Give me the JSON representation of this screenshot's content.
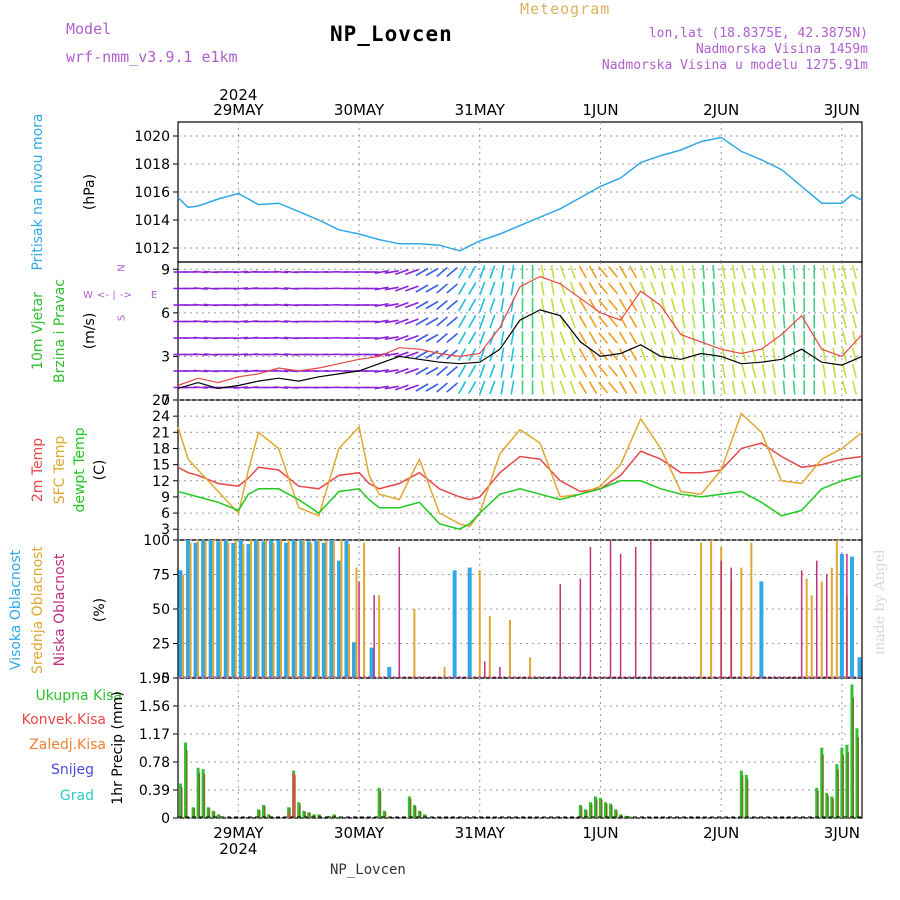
{
  "header": {
    "title": "NP_Lovcen",
    "model_label": "Model",
    "model_name": "wrf-nmm_v3.9.1 e1km",
    "product": "Meteogram",
    "lonlat": "lon,lat (18.8375E, 42.3875N)",
    "altitude": "Nadmorska Visina 1459m",
    "model_altitude": "Nadmorska Visina u modelu 1275.91m",
    "bottom_name": "NP_Lovcen",
    "made_by": "made by Angel"
  },
  "colors": {
    "pressure": "#30a8e8",
    "wind_label": "#30c030",
    "wind_compass": "#b060d0",
    "t2m": "#e84848",
    "tsfc": "#e0a830",
    "dewpt": "#20c820",
    "high_cloud": "#30a8e8",
    "mid_cloud": "#e0a830",
    "low_cloud": "#c03080",
    "total_precip": "#30c030",
    "conv_precip": "#e84848",
    "frozen_precip": "#f08030",
    "snow": "#4848e0",
    "hail": "#30c8c8",
    "olive": "#707020"
  },
  "chart_data": [
    {
      "type": "line",
      "panel": "pressure",
      "ylabel": "Pritisak na nivou mora",
      "unit": "(hPa)",
      "ylim": [
        1011,
        1021
      ],
      "yticks": [
        "1012",
        "1014",
        "1016",
        "1018",
        "1020"
      ],
      "xlim": [
        0,
        136
      ],
      "date_ticks": {
        "year": "2024",
        "labels": [
          "29MAY",
          "30MAY",
          "31MAY",
          "1JUN",
          "2JUN",
          "3JUN"
        ],
        "hours": [
          12,
          36,
          60,
          84,
          108,
          132
        ]
      },
      "x_hours": [
        0,
        2,
        4,
        8,
        12,
        16,
        20,
        24,
        28,
        32,
        36,
        40,
        44,
        48,
        52,
        56,
        60,
        64,
        68,
        72,
        76,
        80,
        84,
        88,
        92,
        96,
        100,
        104,
        108,
        112,
        116,
        120,
        124,
        128,
        132,
        134,
        136
      ],
      "values": [
        1015.6,
        1014.9,
        1015.0,
        1015.5,
        1015.9,
        1015.1,
        1015.2,
        1014.6,
        1014.0,
        1013.3,
        1013.0,
        1012.6,
        1012.3,
        1012.3,
        1012.2,
        1011.8,
        1012.5,
        1013.0,
        1013.6,
        1014.2,
        1014.8,
        1015.6,
        1016.4,
        1017.0,
        1018.1,
        1018.6,
        1019.0,
        1019.6,
        1019.9,
        1018.9,
        1018.3,
        1017.6,
        1016.4,
        1015.2,
        1015.2,
        1015.8,
        1015.4
      ],
      "series": [
        {
          "name": "Pritisak na nivou mora",
          "values": []
        }
      ]
    },
    {
      "type": "line",
      "panel": "wind",
      "ylabel": [
        "10m Vjetar",
        "Brzina i Pravac"
      ],
      "unit": "(m/s)",
      "compass": [
        "W",
        "<-",
        "|",
        "->",
        "E",
        "S",
        "N"
      ],
      "ylim": [
        0,
        9.5
      ],
      "yticks": [
        "0",
        "3",
        "6",
        "9"
      ],
      "x_hours": [
        0,
        4,
        8,
        12,
        16,
        20,
        24,
        28,
        32,
        36,
        40,
        44,
        48,
        52,
        56,
        60,
        64,
        68,
        72,
        76,
        80,
        84,
        88,
        92,
        96,
        100,
        104,
        108,
        112,
        116,
        120,
        124,
        128,
        132,
        136
      ],
      "speed": [
        0.8,
        1.2,
        0.8,
        1.0,
        1.3,
        1.5,
        1.3,
        1.6,
        1.8,
        2.0,
        2.5,
        3.0,
        2.8,
        2.6,
        2.5,
        2.6,
        3.5,
        5.5,
        6.2,
        5.8,
        4.0,
        3.0,
        3.2,
        3.8,
        3.0,
        2.8,
        3.2,
        3.0,
        2.5,
        2.6,
        2.8,
        3.5,
        2.6,
        2.4,
        3.0
      ],
      "gust": [
        1.0,
        1.5,
        1.2,
        1.6,
        1.8,
        2.2,
        2.0,
        2.2,
        2.5,
        2.8,
        3.0,
        3.6,
        3.5,
        3.2,
        3.0,
        3.2,
        5.0,
        7.8,
        8.5,
        8.0,
        7.0,
        6.0,
        5.5,
        7.5,
        6.5,
        4.5,
        4.0,
        3.5,
        3.2,
        3.5,
        4.5,
        5.8,
        3.5,
        3.0,
        4.5
      ],
      "direction_deg": [
        270,
        275,
        270,
        265,
        270,
        275,
        270,
        268,
        272,
        270,
        260,
        250,
        240,
        230,
        210,
        200,
        190,
        180,
        170,
        160,
        150,
        140,
        150,
        160,
        165,
        170,
        175,
        170,
        165,
        170,
        175,
        180,
        170,
        165,
        170
      ],
      "series": [
        {
          "name": "speed",
          "values": []
        },
        {
          "name": "gust",
          "values": []
        }
      ]
    },
    {
      "type": "line",
      "panel": "temperature",
      "ylabel": [
        "2m Temp",
        "SFC Temp",
        "dewpt Temp"
      ],
      "unit": "(C)",
      "ylim": [
        1,
        27
      ],
      "yticks": [
        "3",
        "6",
        "9",
        "12",
        "15",
        "18",
        "21",
        "24",
        "27"
      ],
      "x_hours": [
        0,
        2,
        4,
        8,
        12,
        14,
        16,
        20,
        24,
        28,
        32,
        36,
        38,
        40,
        44,
        48,
        52,
        56,
        58,
        60,
        64,
        68,
        72,
        76,
        80,
        84,
        88,
        92,
        96,
        100,
        104,
        108,
        112,
        116,
        120,
        124,
        128,
        132,
        136
      ],
      "series": [
        {
          "name": "2m Temp",
          "values": [
            14.5,
            13.5,
            13.0,
            11.5,
            11.0,
            12.5,
            14.5,
            14.0,
            11.0,
            10.5,
            13.0,
            13.5,
            11.5,
            10.5,
            11.5,
            13.5,
            10.5,
            9.0,
            8.5,
            9.0,
            13.5,
            16.5,
            16.0,
            12.0,
            10.0,
            10.5,
            13.0,
            17.5,
            16.0,
            13.5,
            13.5,
            14.0,
            18.0,
            19.0,
            16.5,
            14.5,
            15.0,
            16.0,
            16.5
          ]
        },
        {
          "name": "SFC Temp",
          "values": [
            22.0,
            16.0,
            14.0,
            10.0,
            6.0,
            14.0,
            21.0,
            18.0,
            7.0,
            5.5,
            18.0,
            22.0,
            13.0,
            9.5,
            8.5,
            16.0,
            6.0,
            4.0,
            3.5,
            6.0,
            17.0,
            21.5,
            19.0,
            9.0,
            9.5,
            11.0,
            15.0,
            23.5,
            18.0,
            10.0,
            9.5,
            14.0,
            24.5,
            21.0,
            12.0,
            11.5,
            16.0,
            18.0,
            21.0
          ]
        },
        {
          "name": "dewpt Temp",
          "values": [
            10.0,
            9.5,
            9.0,
            8.0,
            6.5,
            9.5,
            10.5,
            10.5,
            8.5,
            6.0,
            10.0,
            10.5,
            8.5,
            7.0,
            7.0,
            8.0,
            4.0,
            3.0,
            4.0,
            6.0,
            9.5,
            10.5,
            9.5,
            8.5,
            9.5,
            10.5,
            12.0,
            12.0,
            10.5,
            9.5,
            9.0,
            9.5,
            10.0,
            8.0,
            5.5,
            6.5,
            10.5,
            12.0,
            13.0
          ]
        }
      ]
    },
    {
      "type": "bar",
      "panel": "cloud",
      "ylabel": [
        "Visoka Oblacnost",
        "Srednja Oblacnost",
        "Niska Oblacnost"
      ],
      "unit": "(%)",
      "ylim": [
        0,
        100
      ],
      "yticks": [
        "0",
        "25",
        "50",
        "75",
        "100"
      ],
      "series": [
        {
          "name": "Visoka Oblacnost",
          "x_hours": [
            0.5,
            2,
            3.5,
            5,
            6.5,
            8,
            9.5,
            11,
            12.5,
            14,
            15.5,
            17,
            18.5,
            20,
            21.5,
            23,
            24.5,
            26,
            27.5,
            29,
            30.5,
            32,
            33.5,
            35,
            38.5,
            42,
            55,
            58,
            116,
            132,
            134,
            135.5
          ],
          "values": [
            78,
            100,
            98,
            100,
            100,
            99,
            100,
            98,
            100,
            97,
            100,
            99,
            100,
            100,
            98,
            100,
            100,
            99,
            100,
            98,
            100,
            85,
            100,
            26,
            22,
            8,
            78,
            80,
            70,
            90,
            88,
            15
          ]
        },
        {
          "name": "Srednja Oblacnost",
          "x_hours": [
            1,
            2.5,
            4,
            5.5,
            7,
            8.5,
            10,
            11.5,
            13,
            14.5,
            16,
            17.5,
            19,
            20.5,
            22,
            23.5,
            25,
            26.5,
            28,
            29.5,
            31,
            32.5,
            34,
            35.5,
            37,
            40,
            47,
            53,
            60,
            62,
            66,
            70,
            104,
            106,
            108,
            110,
            112,
            114,
            125,
            126,
            128,
            130,
            131,
            133
          ],
          "values": [
            75,
            98,
            100,
            99,
            100,
            100,
            98,
            100,
            97,
            100,
            99,
            100,
            98,
            100,
            100,
            99,
            100,
            98,
            100,
            100,
            99,
            100,
            97,
            80,
            98,
            60,
            50,
            8,
            78,
            45,
            42,
            15,
            98,
            100,
            95,
            70,
            80,
            98,
            72,
            60,
            70,
            80,
            100,
            60
          ]
        },
        {
          "name": "Niska Oblacnost",
          "x_hours": [
            36,
            39,
            44,
            61,
            64,
            76,
            80,
            82,
            86,
            88,
            91,
            94,
            108,
            110,
            124,
            127,
            129,
            133
          ],
          "values": [
            70,
            60,
            95,
            12,
            8,
            68,
            72,
            95,
            100,
            90,
            95,
            100,
            85,
            80,
            78,
            85,
            75,
            90
          ]
        }
      ]
    },
    {
      "type": "bar",
      "panel": "precip",
      "ylabel": "1hr Precip",
      "unit": "(mm)",
      "legend": [
        "Ukupna Kisa",
        "Konvek.Kisa",
        "Zaledj.Kisa",
        "Snijeg",
        "Grad"
      ],
      "ylim": [
        0,
        1.95
      ],
      "yticks": [
        "0",
        "0.39",
        "0.78",
        "1.17",
        "1.56",
        "1.95"
      ],
      "x_hours": [
        0.5,
        1.5,
        3,
        4,
        5,
        6,
        7,
        8,
        9,
        16,
        17,
        18,
        22,
        23,
        24,
        25,
        26,
        27,
        28,
        30,
        31,
        32,
        40,
        41,
        46,
        47,
        48,
        49,
        80,
        81,
        82,
        83,
        84,
        85,
        86,
        87,
        88,
        89,
        90,
        112,
        113,
        127,
        128,
        129,
        130,
        131,
        132,
        133,
        134,
        135
      ],
      "values": [
        0.48,
        1.05,
        0.15,
        0.7,
        0.68,
        0.15,
        0.1,
        0.05,
        0.02,
        0.12,
        0.18,
        0.05,
        0.15,
        0.66,
        0.22,
        0.1,
        0.08,
        0.05,
        0.05,
        0.03,
        0.05,
        0.02,
        0.42,
        0.1,
        0.3,
        0.18,
        0.1,
        0.05,
        0.18,
        0.12,
        0.22,
        0.3,
        0.28,
        0.22,
        0.2,
        0.12,
        0.05,
        0.03,
        0.02,
        0.66,
        0.6,
        0.42,
        0.98,
        0.35,
        0.3,
        0.75,
        0.98,
        1.02,
        1.86,
        1.25
      ],
      "conv_values": [
        0,
        0,
        0,
        0,
        0,
        0,
        0,
        0,
        0,
        0,
        0,
        0,
        0.05,
        0.62,
        0,
        0,
        0,
        0,
        0,
        0,
        0,
        0,
        0,
        0,
        0,
        0,
        0,
        0,
        0,
        0,
        0,
        0,
        0,
        0,
        0,
        0,
        0,
        0,
        0,
        0,
        0,
        0,
        0,
        0,
        0,
        0,
        0,
        0,
        0,
        0
      ],
      "series": [
        {
          "name": "Ukupna Kisa",
          "values": []
        }
      ]
    }
  ]
}
